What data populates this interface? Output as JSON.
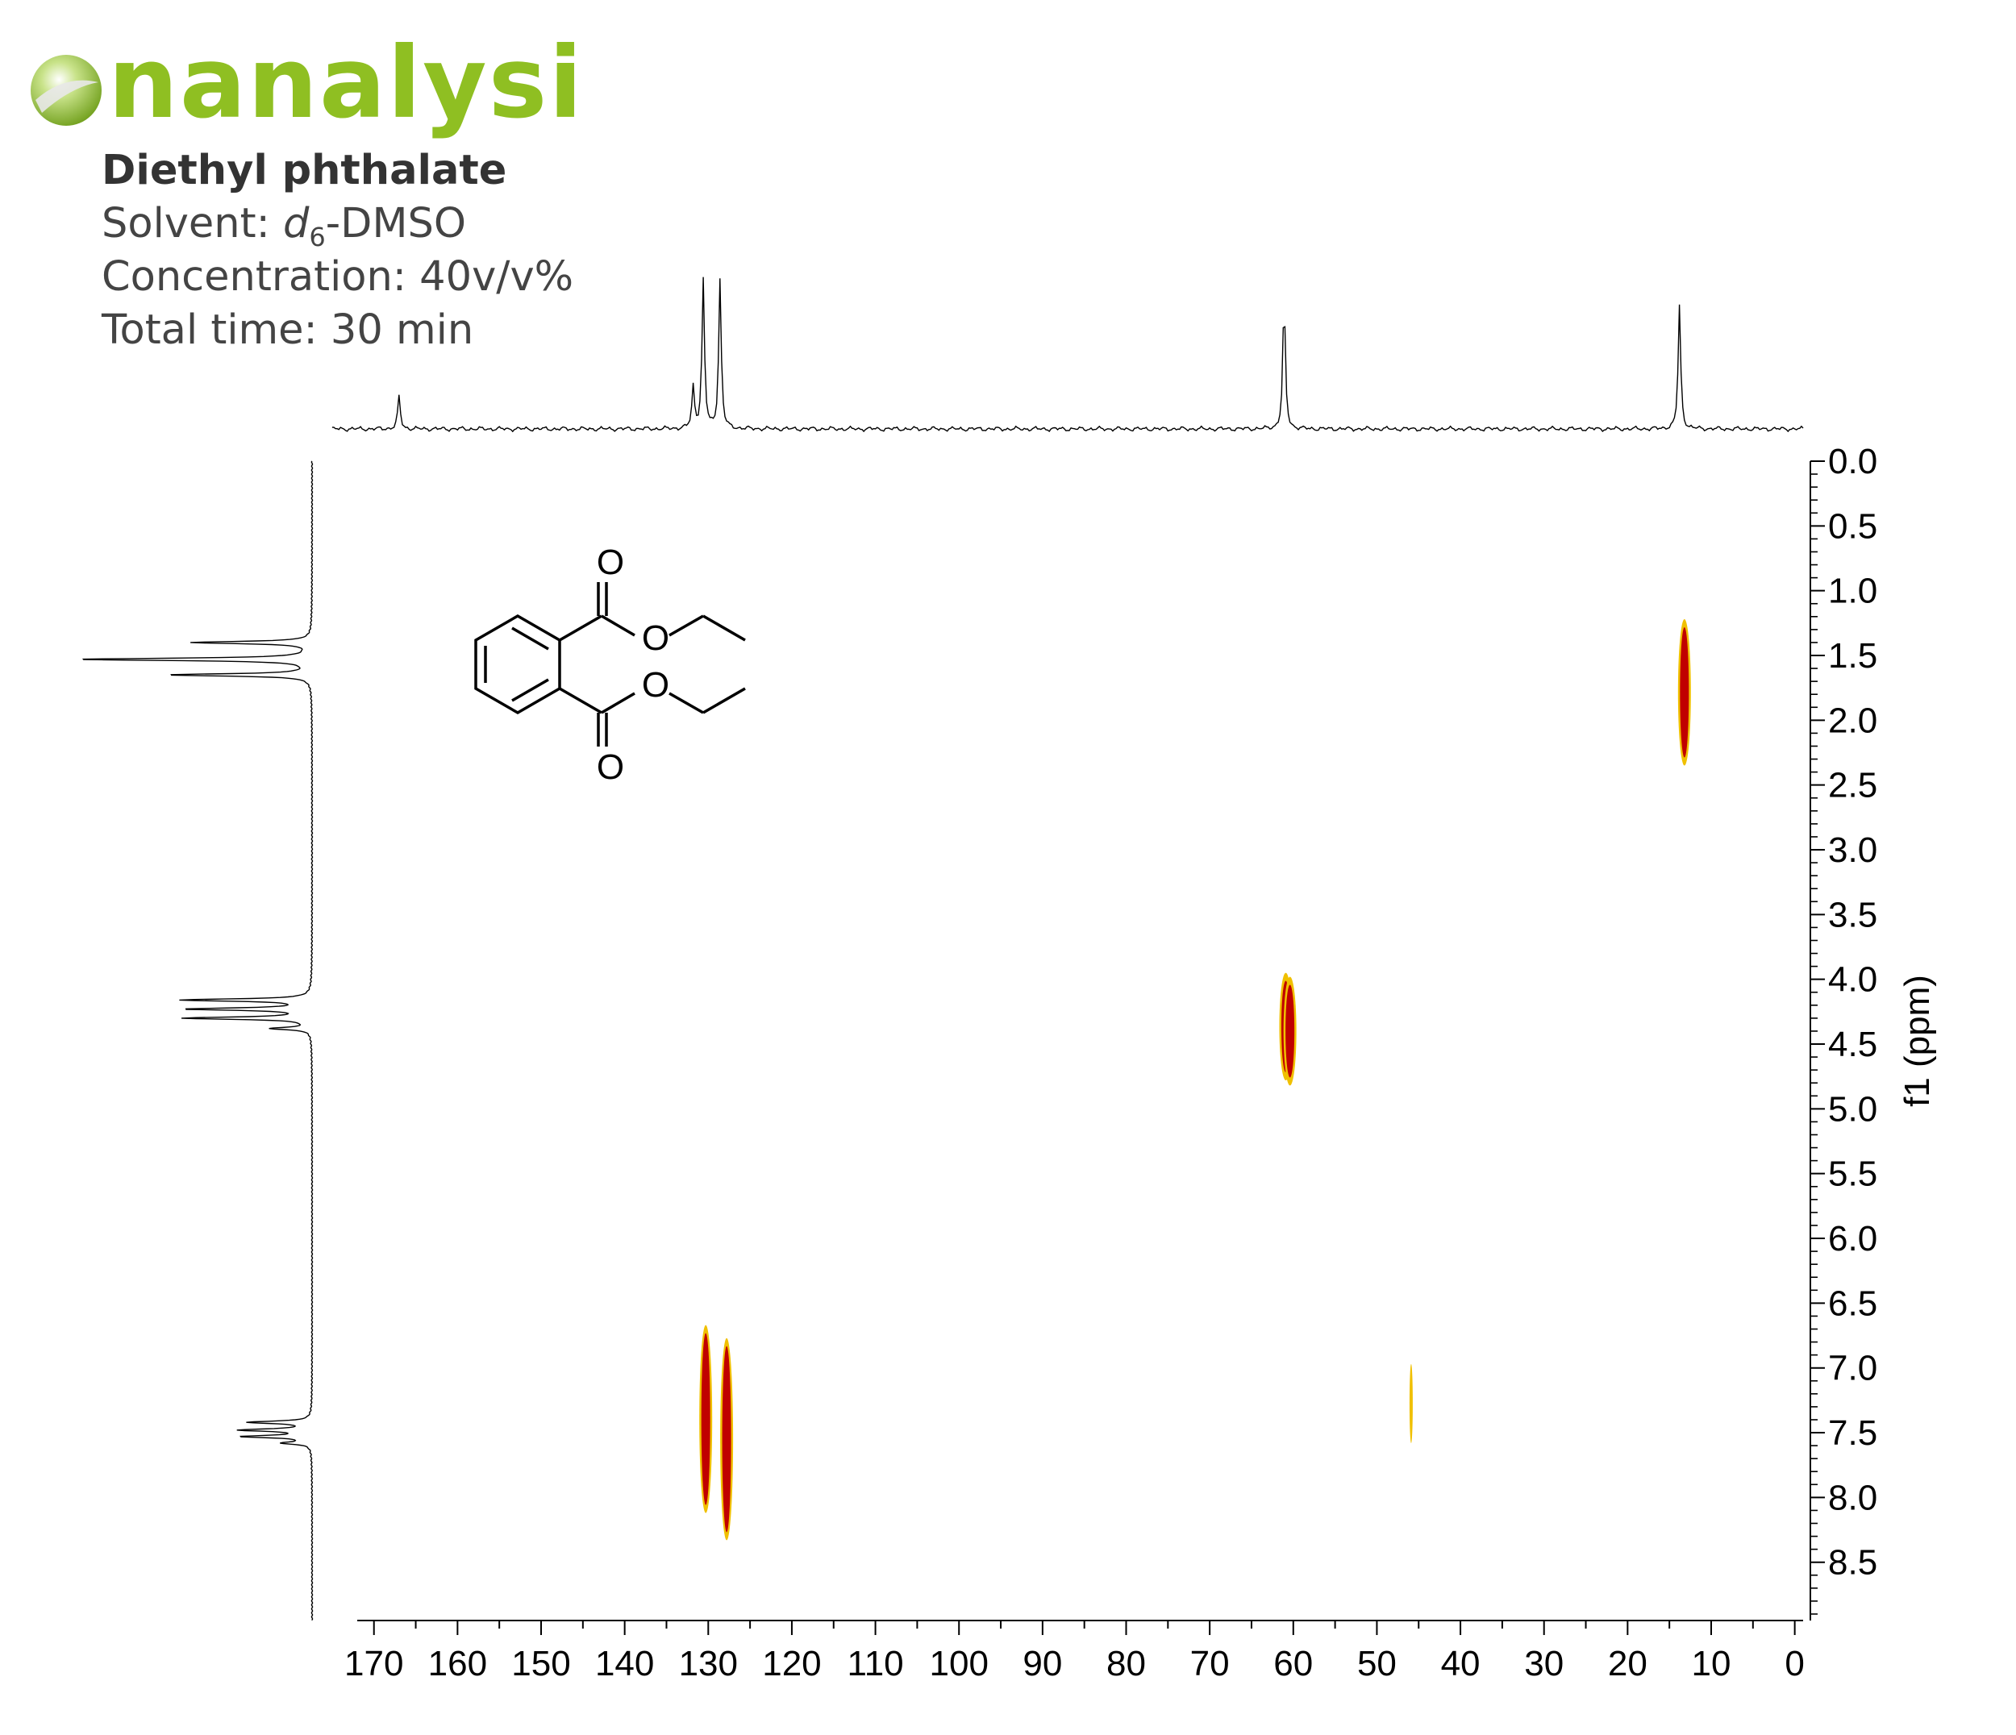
{
  "brand": {
    "name": "nanalysis",
    "logo_color": "#8fbf22"
  },
  "info": {
    "compound": "Diethyl phthalate",
    "solvent_label": "Solvent: ",
    "solvent_prefix": "d",
    "solvent_sub": "6",
    "solvent_suffix": "-DMSO",
    "concentration": "Concentration: 40v/v%",
    "total_time": "Total time: 30 min"
  },
  "molecule": {
    "atom_label": "O"
  },
  "chart_data": {
    "type": "heatmap",
    "title": "",
    "xlabel": "",
    "ylabel": "f1 (ppm)",
    "xlim": [
      172,
      -1
    ],
    "ylim": [
      0,
      8.95
    ],
    "x_ticks": [
      "170",
      "160",
      "150",
      "140",
      "130",
      "120",
      "110",
      "100",
      "90",
      "80",
      "70",
      "60",
      "50",
      "40",
      "30",
      "20",
      "10",
      "0"
    ],
    "y_ticks": [
      "0.0",
      "0.5",
      "1.0",
      "1.5",
      "2.0",
      "2.5",
      "3.0",
      "3.5",
      "4.0",
      "4.5",
      "5.0",
      "5.5",
      "6.0",
      "6.5",
      "7.0",
      "7.5",
      "8.0",
      "8.5"
    ],
    "colors": {
      "strong": "#c00000",
      "outline": "#f0c000",
      "weak": "#f0c000"
    },
    "cross_peaks": [
      {
        "x": 130.3,
        "y": 7.37,
        "y_range": [
          6.67,
          8.12
        ],
        "intensity": "strong"
      },
      {
        "x": 127.8,
        "y": 7.55,
        "y_range": [
          6.77,
          8.33
        ],
        "intensity": "strong"
      },
      {
        "x": 60.9,
        "y": 4.37,
        "y_range": [
          3.95,
          4.78
        ],
        "intensity": "strong"
      },
      {
        "x": 60.4,
        "y": 4.4,
        "y_range": [
          3.98,
          4.82
        ],
        "intensity": "strong"
      },
      {
        "x": 13.2,
        "y": 1.78,
        "y_range": [
          1.22,
          2.35
        ],
        "intensity": "strong"
      },
      {
        "x": 45.9,
        "y": 7.28,
        "y_range": [
          6.97,
          7.58
        ],
        "intensity": "weak"
      }
    ],
    "f2_projection": [
      {
        "x": 167.0,
        "height": 0.22
      },
      {
        "x": 131.8,
        "height": 0.28
      },
      {
        "x": 130.6,
        "height": 1.0
      },
      {
        "x": 128.6,
        "height": 1.0
      },
      {
        "x": 61.1,
        "height": 0.88
      },
      {
        "x": 13.8,
        "height": 0.83
      }
    ],
    "f1_projection": [
      {
        "y": 1.4,
        "height": 0.51
      },
      {
        "y": 1.53,
        "height": 1.0
      },
      {
        "y": 1.65,
        "height": 0.61
      },
      {
        "y": 4.16,
        "height": 0.55
      },
      {
        "y": 4.23,
        "height": 0.53
      },
      {
        "y": 4.3,
        "height": 0.54
      },
      {
        "y": 4.38,
        "height": 0.17
      },
      {
        "y": 7.42,
        "height": 0.27
      },
      {
        "y": 7.48,
        "height": 0.3
      },
      {
        "y": 7.53,
        "height": 0.29
      },
      {
        "y": 7.58,
        "height": 0.12
      }
    ]
  }
}
